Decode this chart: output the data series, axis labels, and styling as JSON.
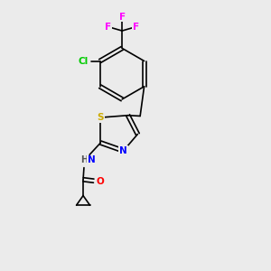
{
  "background_color": "#ebebeb",
  "bond_color": "#000000",
  "bond_width": 1.2,
  "atom_colors": {
    "F": "#ff00ff",
    "Cl": "#00cc00",
    "S": "#ccaa00",
    "N": "#0000ff",
    "O": "#ff0000",
    "H": "#555555",
    "C": "#000000"
  },
  "font_size": 7.5,
  "figsize": [
    3.0,
    3.0
  ],
  "dpi": 100
}
